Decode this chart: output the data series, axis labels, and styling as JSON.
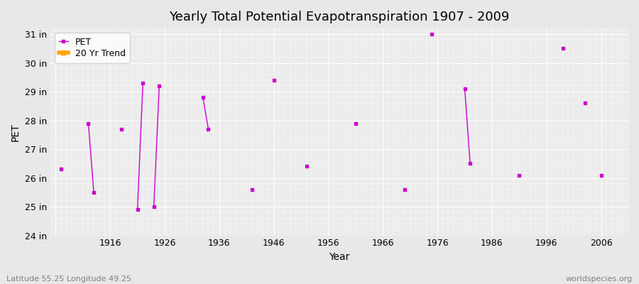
{
  "title": "Yearly Total Potential Evapotranspiration 1907 - 2009",
  "xlabel": "Year",
  "ylabel": "PET",
  "subtitle_left": "Latitude 55.25 Longitude 49.25",
  "subtitle_right": "worldspecies.org",
  "ylim": [
    24,
    31.2
  ],
  "xlim": [
    1905,
    2011
  ],
  "yticks": [
    24,
    25,
    26,
    27,
    28,
    29,
    30,
    31
  ],
  "ytick_labels": [
    "24 in",
    "25 in",
    "26 in",
    "27 in",
    "28 in",
    "29 in",
    "30 in",
    "31 in"
  ],
  "xticks": [
    1906,
    1916,
    1926,
    1936,
    1946,
    1956,
    1966,
    1976,
    1986,
    1996,
    2006
  ],
  "xtick_labels": [
    "",
    "1916",
    "1926",
    "1936",
    "1946",
    "1956",
    "1966",
    "1976",
    "1986",
    "1996",
    "2006"
  ],
  "pet_color": "#CC00CC",
  "trend_color": "#FFA500",
  "background_color": "#E8E8E8",
  "plot_bg_color": "#EBEBEB",
  "grid_color": "#FFFFFF",
  "pet_data": {
    "1907": 26.3,
    "1908": null,
    "1909": null,
    "1910": null,
    "1911": null,
    "1912": 27.9,
    "1913": 25.5,
    "1914": null,
    "1915": null,
    "1916": null,
    "1917": null,
    "1918": 27.7,
    "1919": null,
    "1920": null,
    "1921": 24.9,
    "1922": 29.3,
    "1923": null,
    "1924": 25.0,
    "1925": 29.2,
    "1926": null,
    "1927": null,
    "1928": null,
    "1929": null,
    "1930": null,
    "1931": null,
    "1932": null,
    "1933": 28.8,
    "1934": 27.7,
    "1935": null,
    "1936": null,
    "1937": null,
    "1938": null,
    "1939": null,
    "1940": null,
    "1941": null,
    "1942": 25.6,
    "1943": null,
    "1944": null,
    "1945": null,
    "1946": 29.4,
    "1947": null,
    "1948": null,
    "1949": null,
    "1950": null,
    "1951": null,
    "1952": 26.4,
    "1953": null,
    "1954": null,
    "1955": null,
    "1956": null,
    "1957": null,
    "1958": null,
    "1959": null,
    "1960": null,
    "1961": 27.9,
    "1962": null,
    "1963": null,
    "1964": null,
    "1965": null,
    "1966": null,
    "1967": null,
    "1968": null,
    "1969": null,
    "1970": 25.6,
    "1971": null,
    "1972": null,
    "1973": null,
    "1974": null,
    "1975": 31.0,
    "1976": null,
    "1977": null,
    "1978": null,
    "1979": null,
    "1980": null,
    "1981": 29.1,
    "1982": 26.5,
    "1983": null,
    "1984": null,
    "1985": null,
    "1986": null,
    "1987": null,
    "1988": null,
    "1989": null,
    "1990": null,
    "1991": 26.1,
    "1992": null,
    "1993": null,
    "1994": null,
    "1995": null,
    "1996": null,
    "1997": null,
    "1998": null,
    "1999": 30.5,
    "2000": null,
    "2001": null,
    "2002": null,
    "2003": 28.6,
    "2004": null,
    "2005": null,
    "2006": 26.1,
    "2007": null,
    "2008": null,
    "2009": null
  },
  "segments": [
    {
      "years": [
        1907
      ],
      "values": [
        26.3
      ]
    },
    {
      "years": [
        1912,
        1913
      ],
      "values": [
        27.9,
        25.5
      ]
    },
    {
      "years": [
        1918
      ],
      "values": [
        27.7
      ]
    },
    {
      "years": [
        1921,
        1922
      ],
      "values": [
        24.9,
        29.3
      ]
    },
    {
      "years": [
        1924,
        1925
      ],
      "values": [
        25.0,
        29.2
      ]
    },
    {
      "years": [
        1933,
        1934
      ],
      "values": [
        28.8,
        27.7
      ]
    },
    {
      "years": [
        1942
      ],
      "values": [
        25.6
      ]
    },
    {
      "years": [
        1946
      ],
      "values": [
        29.4
      ]
    },
    {
      "years": [
        1952
      ],
      "values": [
        26.4
      ]
    },
    {
      "years": [
        1961
      ],
      "values": [
        27.9
      ]
    },
    {
      "years": [
        1970
      ],
      "values": [
        25.6
      ]
    },
    {
      "years": [
        1975
      ],
      "values": [
        31.0
      ]
    },
    {
      "years": [
        1981,
        1982
      ],
      "values": [
        29.1,
        26.5
      ]
    },
    {
      "years": [
        1991
      ],
      "values": [
        26.1
      ]
    },
    {
      "years": [
        1999
      ],
      "values": [
        30.5
      ]
    },
    {
      "years": [
        2003
      ],
      "values": [
        28.6
      ]
    },
    {
      "years": [
        2006
      ],
      "values": [
        26.1
      ]
    }
  ],
  "marker_size": 3,
  "line_width": 1.0,
  "legend_fontsize": 9,
  "tick_fontsize": 9,
  "title_fontsize": 13,
  "label_fontsize": 10
}
